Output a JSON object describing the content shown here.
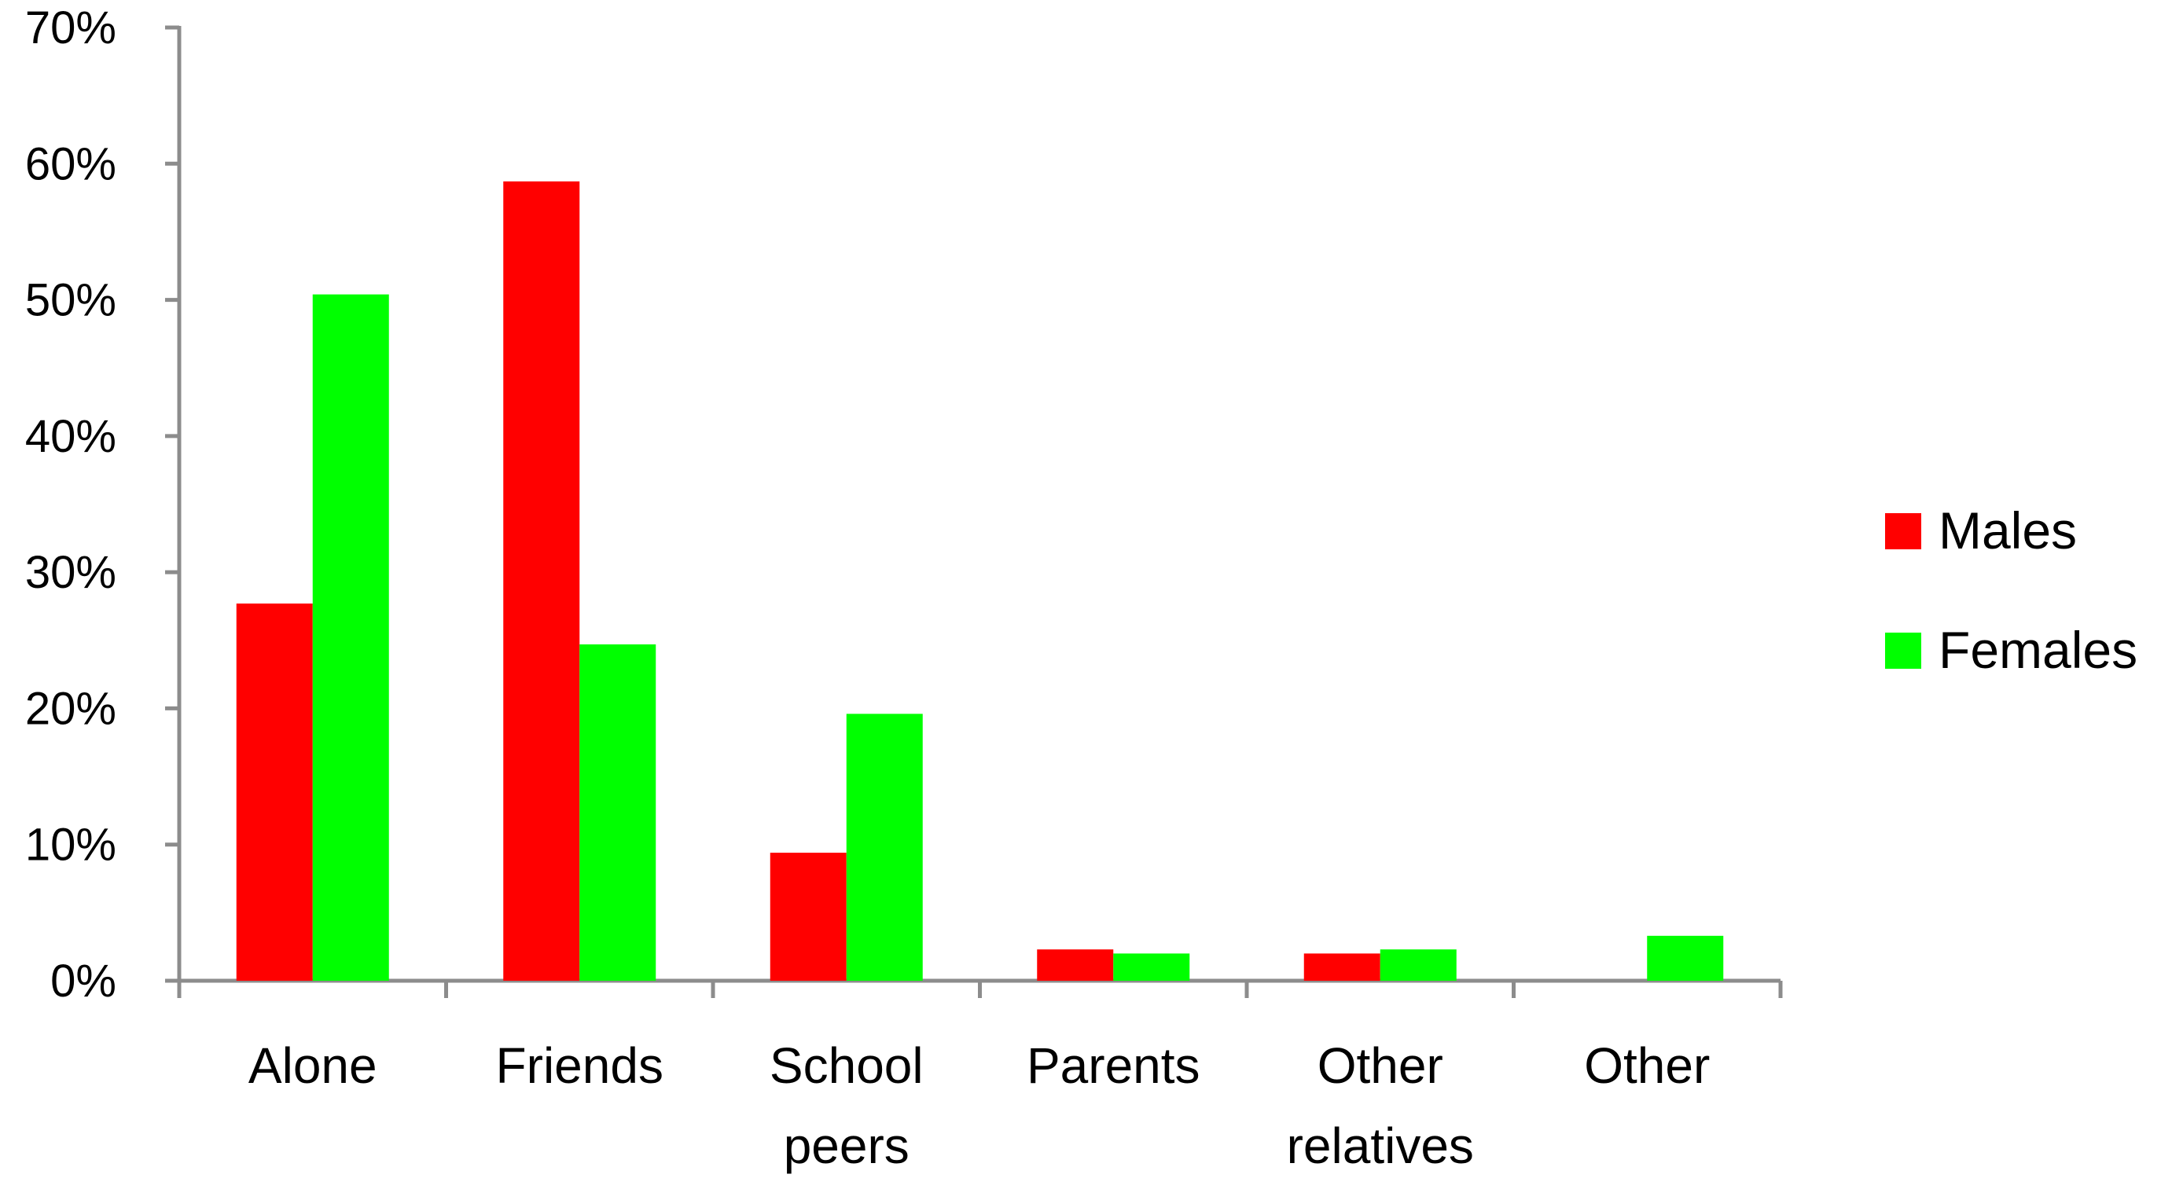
{
  "chart_data": {
    "type": "bar",
    "title": "",
    "xlabel": "",
    "ylabel": "",
    "categories": [
      [
        "Alone"
      ],
      [
        "Friends"
      ],
      [
        "School",
        "peers"
      ],
      [
        "Parents"
      ],
      [
        "Other",
        "relatives"
      ],
      [
        "Other"
      ]
    ],
    "series": [
      {
        "name": "Males",
        "color": "#ff0000",
        "values": [
          27.7,
          58.7,
          9.4,
          2.3,
          2.0,
          0
        ]
      },
      {
        "name": "Females",
        "color": "#00ff00",
        "values": [
          50.4,
          24.7,
          19.6,
          2.0,
          2.3,
          3.3
        ]
      }
    ],
    "ylim": [
      0,
      70
    ],
    "ytick_step": 10,
    "ytick_labels": [
      "0%",
      "10%",
      "20%",
      "30%",
      "40%",
      "50%",
      "60%",
      "70%"
    ],
    "grid": false,
    "legend_position": "right"
  }
}
